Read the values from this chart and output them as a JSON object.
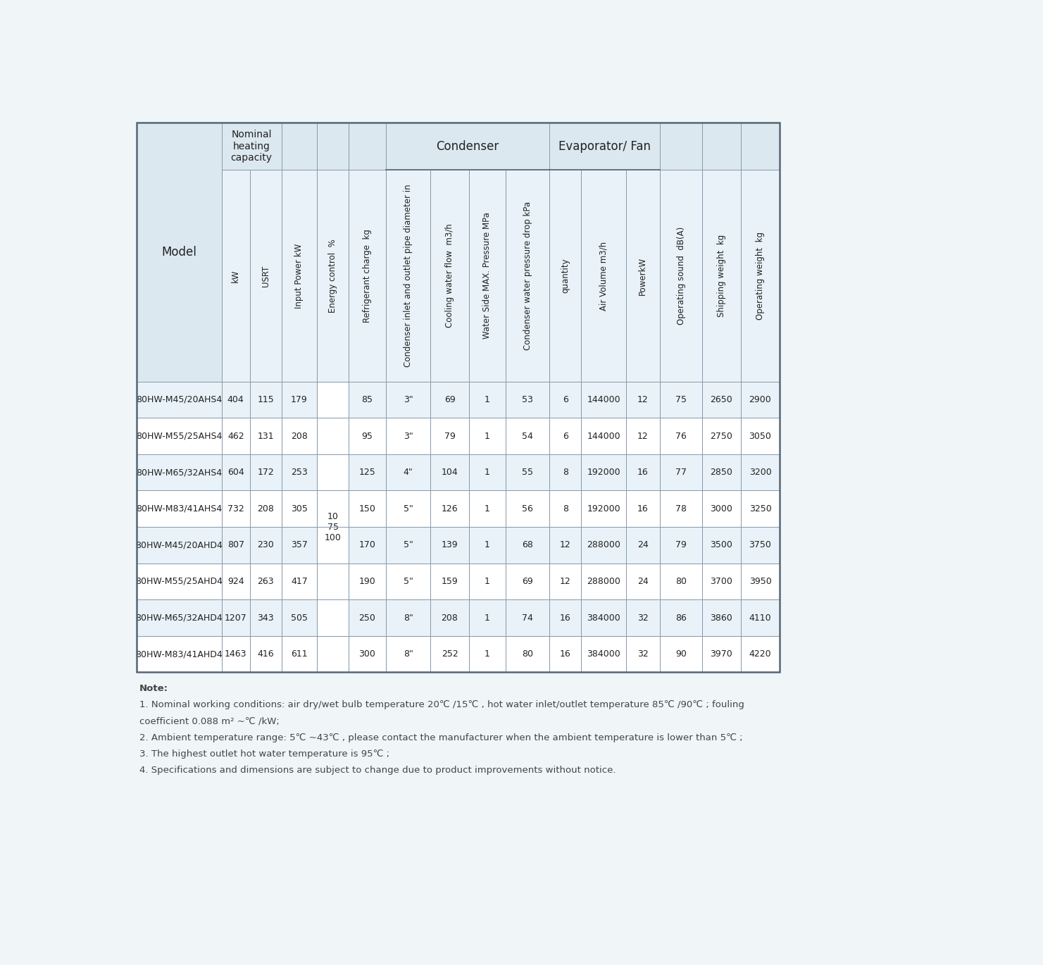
{
  "bg_color": "#f0f5f8",
  "header_bg": "#dce8f0",
  "cell_bg": "#e8f2f8",
  "white_bg": "#ffffff",
  "border_color": "#8899aa",
  "outer_border": "#556677",
  "text_color": "#222222",
  "note_color": "#444444",
  "col_headers": [
    "Model",
    "kW",
    "USRT",
    "Input Power kW",
    "Energy control  %",
    "Refrigerant charge  kg",
    "Condenser inlet and outlet pipe diameter in",
    "Cooling water flow  m3/h",
    "Water Side MAX. Pressure MPa",
    "Condenser water pressure drop kPa",
    "quantity",
    "Air Volume m3/h",
    "PowerkW",
    "Operating sound  dB(A)",
    "Shipping weight  kg",
    "Operating weight  kg"
  ],
  "data_rows": [
    [
      "80HW-M45/20AHS4",
      "404",
      "115",
      "179",
      "",
      "85",
      "3\"",
      "69",
      "1",
      "53",
      "6",
      "144000",
      "12",
      "75",
      "2650",
      "2900"
    ],
    [
      "80HW-M55/25AHS4",
      "462",
      "131",
      "208",
      "",
      "95",
      "3\"",
      "79",
      "1",
      "54",
      "6",
      "144000",
      "12",
      "76",
      "2750",
      "3050"
    ],
    [
      "80HW-M65/32AHS4",
      "604",
      "172",
      "253",
      "",
      "125",
      "4\"",
      "104",
      "1",
      "55",
      "8",
      "192000",
      "16",
      "77",
      "2850",
      "3200"
    ],
    [
      "80HW-M83/41AHS4",
      "732",
      "208",
      "305",
      "10\n75\n100",
      "150",
      "5\"",
      "126",
      "1",
      "56",
      "8",
      "192000",
      "16",
      "78",
      "3000",
      "3250"
    ],
    [
      "80HW-M45/20AHD4",
      "807",
      "230",
      "357",
      "",
      "170",
      "5\"",
      "139",
      "1",
      "68",
      "12",
      "288000",
      "24",
      "79",
      "3500",
      "3750"
    ],
    [
      "80HW-M55/25AHD4",
      "924",
      "263",
      "417",
      "",
      "190",
      "5\"",
      "159",
      "1",
      "69",
      "12",
      "288000",
      "24",
      "80",
      "3700",
      "3950"
    ],
    [
      "80HW-M65/32AHD4",
      "1207",
      "343",
      "505",
      "",
      "250",
      "8\"",
      "208",
      "1",
      "74",
      "16",
      "384000",
      "32",
      "86",
      "3860",
      "4110"
    ],
    [
      "80HW-M83/41AHD4",
      "1463",
      "416",
      "611",
      "",
      "300",
      "8\"",
      "252",
      "1",
      "80",
      "16",
      "384000",
      "32",
      "90",
      "3970",
      "4220"
    ]
  ],
  "notes": [
    {
      "text": "Note:",
      "bold": true,
      "indent": 0
    },
    {
      "text": "1. Nominal working conditions: air dry/wet bulb temperature 20℃ /15℃ , hot water inlet/outlet temperature 85℃ /90℃ ; fouling",
      "bold": false,
      "indent": 0
    },
    {
      "text": "coefficient 0.088 m² ~℃ /kW;",
      "bold": false,
      "indent": 0
    },
    {
      "text": "2. Ambient temperature range: 5℃ ~43℃ , please contact the manufacturer when the ambient temperature is lower than 5℃ ;",
      "bold": false,
      "indent": 0
    },
    {
      "text": "3. The highest outlet hot water temperature is 95℃ ;",
      "bold": false,
      "indent": 0
    },
    {
      "text": "4. Specifications and dimensions are subject to change due to product improvements without notice.",
      "bold": false,
      "indent": 0
    }
  ]
}
